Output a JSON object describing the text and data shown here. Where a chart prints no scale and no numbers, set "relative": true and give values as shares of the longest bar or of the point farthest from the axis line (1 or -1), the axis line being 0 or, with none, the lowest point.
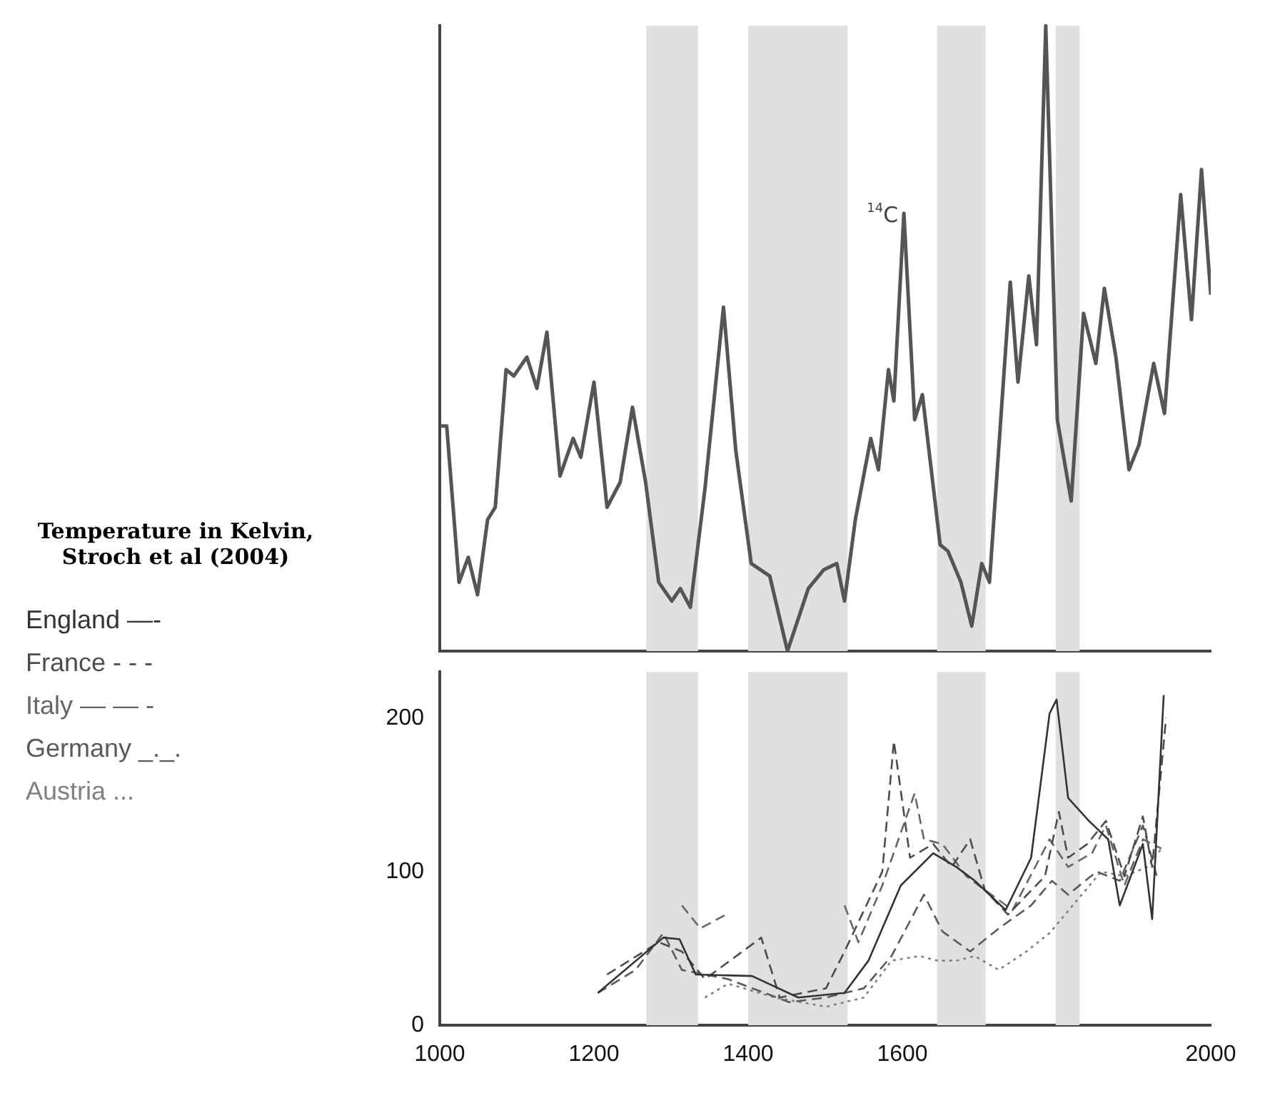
{
  "chart_data": [
    {
      "type": "line",
      "relative": true,
      "grid": false,
      "xlim": [
        1000,
        2000
      ],
      "annotations": [
        {
          "text": "$^{14}$C",
          "x": 1602,
          "y": 0.7
        }
      ],
      "bands": [
        {
          "axis": "x",
          "from": 1268,
          "to": 1335,
          "color": "#e0e0e0"
        },
        {
          "axis": "x",
          "from": 1400,
          "to": 1529,
          "color": "#e0e0e0"
        },
        {
          "axis": "x",
          "from": 1645,
          "to": 1708,
          "color": "#e0e0e0"
        },
        {
          "axis": "x",
          "from": 1799,
          "to": 1830,
          "color": "#e0e0e0"
        }
      ],
      "series": [
        {
          "color": "#555555",
          "x": [
            1002,
            1009,
            1025,
            1037,
            1049,
            1062,
            1072,
            1086,
            1096,
            1113,
            1126,
            1139,
            1156,
            1173,
            1183,
            1200,
            1217,
            1234,
            1250,
            1267,
            1284,
            1301,
            1312,
            1325,
            1344,
            1368,
            1384,
            1404,
            1428,
            1451,
            1478,
            1498,
            1515,
            1525,
            1539,
            1559,
            1569,
            1582,
            1589,
            1602,
            1616,
            1626,
            1649,
            1659,
            1676,
            1690,
            1703,
            1713,
            1740,
            1750,
            1764,
            1774,
            1786,
            1801,
            1819,
            1835,
            1851,
            1862,
            1877,
            1894,
            1907,
            1926,
            1940,
            1961,
            1975,
            1988,
            2000
          ],
          "values": [
            0.36,
            0.36,
            0.11,
            0.15,
            0.09,
            0.21,
            0.23,
            0.45,
            0.44,
            0.47,
            0.42,
            0.51,
            0.28,
            0.34,
            0.31,
            0.43,
            0.23,
            0.27,
            0.39,
            0.27,
            0.11,
            0.08,
            0.1,
            0.07,
            0.26,
            0.55,
            0.32,
            0.14,
            0.12,
            0,
            0.1,
            0.13,
            0.14,
            0.08,
            0.21,
            0.34,
            0.29,
            0.45,
            0.4,
            0.7,
            0.37,
            0.41,
            0.17,
            0.16,
            0.11,
            0.04,
            0.14,
            0.11,
            0.59,
            0.43,
            0.6,
            0.49,
            1,
            0.37,
            0.24,
            0.54,
            0.46,
            0.58,
            0.47,
            0.29,
            0.33,
            0.46,
            0.38,
            0.73,
            0.53,
            0.77,
            0.57
          ]
        }
      ]
    },
    {
      "type": "line",
      "title": "Temperature in Kelvin, Stroch et al (2004)",
      "legend": "left",
      "grid": false,
      "xlim": [
        1000,
        2000
      ],
      "xticks": [
        1000,
        1200,
        1400,
        1600,
        2000
      ],
      "ylim": [
        0,
        230
      ],
      "yticks": [
        0,
        100,
        200
      ],
      "bands": [
        {
          "axis": "x",
          "from": 1268,
          "to": 1335,
          "color": "#e0e0e0"
        },
        {
          "axis": "x",
          "from": 1400,
          "to": 1529,
          "color": "#e0e0e0"
        },
        {
          "axis": "x",
          "from": 1645,
          "to": 1708,
          "color": "#e0e0e0"
        },
        {
          "axis": "x",
          "from": 1799,
          "to": 1830,
          "color": "#e0e0e0"
        }
      ],
      "series": [
        {
          "name": "England —-",
          "color": "#333333",
          "line_style": "solid",
          "x": [
            1205,
            1290,
            1311,
            1332,
            1405,
            1465,
            1525,
            1556,
            1598,
            1640,
            1670,
            1694,
            1734,
            1767,
            1791,
            1800,
            1815,
            1842,
            1867,
            1882,
            1912,
            1924,
            1939
          ],
          "values": [
            21,
            57,
            56,
            33,
            32,
            18,
            21,
            42,
            91,
            112,
            103,
            94,
            75,
            109,
            203,
            212,
            148,
            133,
            121,
            78,
            118,
            69,
            215
          ]
        },
        {
          "name": "France - - -",
          "color": "#4d4d4d",
          "line_style": "dashed",
          "x": [
            1217,
            1284,
            1314,
            1344,
            1417,
            1441,
            1501,
            1525,
            1574,
            1589,
            1610,
            1640,
            1664,
            1688,
            1707,
            1737,
            1785,
            1803,
            1815,
            1840,
            1864,
            1888,
            1912,
            1924,
            1942
          ],
          "values": [
            33,
            54,
            48,
            30,
            57,
            18,
            24,
            48,
            100,
            185,
            109,
            118,
            103,
            121,
            88,
            72,
            97,
            139,
            109,
            118,
            133,
            97,
            136,
            103,
            200
          ]
        },
        {
          "name": "Italy — — -",
          "color": "#666666",
          "line_style": "dashed",
          "x": [
            1314,
            1338,
            1371,
            1507,
            1525,
            1543,
            1574,
            1616,
            1628,
            1652,
            1683,
            1707,
            1743,
            1791,
            1815,
            1846,
            1864,
            1888,
            1912,
            1936
          ],
          "values": [
            78,
            63,
            72,
            null,
            78,
            54,
            91,
            151,
            121,
            118,
            97,
            88,
            75,
            121,
            103,
            112,
            130,
            91,
            121,
            115
          ]
        },
        {
          "name": "Germany _._.",
          "color": "#5a5a5a",
          "line_style": "dashed",
          "x": [
            1205,
            1254,
            1290,
            1314,
            1374,
            1453,
            1501,
            1550,
            1586,
            1628,
            1652,
            1688,
            1725,
            1767,
            1794,
            1815,
            1852,
            1882,
            1912,
            1930
          ],
          "values": [
            21,
            36,
            60,
            36,
            30,
            15,
            18,
            24,
            45,
            85,
            61,
            48,
            63,
            78,
            94,
            85,
            100,
            94,
            130,
            97
          ]
        },
        {
          "name": "Austria ...",
          "color": "#808080",
          "line_style": "dotted",
          "x": [
            1344,
            1374,
            1435,
            1501,
            1550,
            1586,
            1622,
            1646,
            1670,
            1694,
            1725,
            1761,
            1791,
            1821,
            1858,
            1888,
            1918,
            1936
          ],
          "values": [
            18,
            27,
            18,
            12,
            18,
            42,
            45,
            42,
            42,
            45,
            36,
            48,
            60,
            78,
            100,
            97,
            103,
            115
          ]
        }
      ]
    }
  ]
}
